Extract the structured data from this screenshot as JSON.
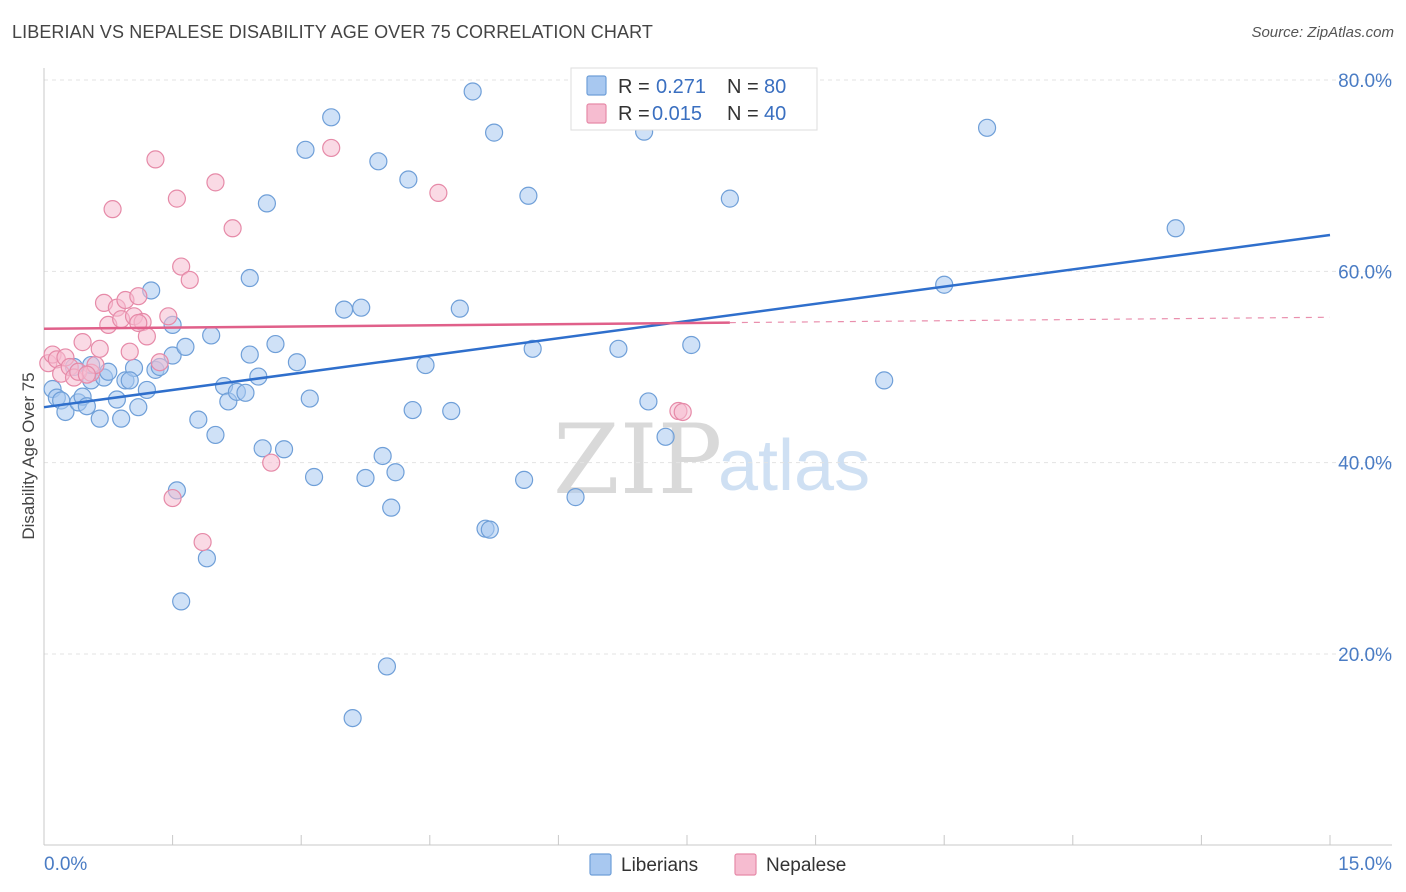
{
  "title": "LIBERIAN VS NEPALESE DISABILITY AGE OVER 75 CORRELATION CHART",
  "source": "Source: ZipAtlas.com",
  "watermark": {
    "zip": "ZIP",
    "atlas": "atlas"
  },
  "colors": {
    "liberians_fill": "#a8c8f0",
    "liberians_stroke": "#6f9fd8",
    "liberians_line": "#2f6fcc",
    "nepalese_fill": "#f6bcd0",
    "nepalese_stroke": "#e68aa8",
    "nepalese_line": "#e0608a",
    "axis_text": "#4a7cc4",
    "grid": "#e3e3e3"
  },
  "legend": {
    "row1": {
      "r_label": "R =",
      "r_value": "0.271",
      "n_label": "N =",
      "n_value": "80"
    },
    "row2": {
      "r_label": "R =",
      "r_value": "0.015",
      "n_label": "N =",
      "n_value": "40"
    }
  },
  "bottom_legend": {
    "liberians": "Liberians",
    "nepalese": "Nepalese"
  },
  "chart_data": {
    "type": "scatter",
    "title": "LIBERIAN VS NEPALESE DISABILITY AGE OVER 75 CORRELATION CHART",
    "xlabel": "",
    "ylabel": "Disability Age Over 75",
    "xlim": [
      0,
      15
    ],
    "ylim": [
      0,
      85
    ],
    "x_tick_labels": {
      "min": "0.0%",
      "max": "15.0%"
    },
    "y_ticks": [
      {
        "value": 20,
        "label": "20.0%"
      },
      {
        "value": 40,
        "label": "40.0%"
      },
      {
        "value": 60,
        "label": "60.0%"
      },
      {
        "value": 80,
        "label": "80.0%"
      }
    ],
    "grid": true,
    "series": [
      {
        "name": "Liberians",
        "R": 0.271,
        "N": 80,
        "trend": {
          "x": [
            0,
            15
          ],
          "y": [
            45.8,
            63.8
          ],
          "solid_until": 15
        },
        "points": [
          [
            0.1,
            47.7
          ],
          [
            0.15,
            46.8
          ],
          [
            0.2,
            46.5
          ],
          [
            0.25,
            45.3
          ],
          [
            0.35,
            50.0
          ],
          [
            0.4,
            46.3
          ],
          [
            0.45,
            46.9
          ],
          [
            0.5,
            45.9
          ],
          [
            0.55,
            48.6
          ],
          [
            0.65,
            44.6
          ],
          [
            0.7,
            48.9
          ],
          [
            0.75,
            49.5
          ],
          [
            0.85,
            46.6
          ],
          [
            0.9,
            44.6
          ],
          [
            0.95,
            48.6
          ],
          [
            1.05,
            49.9
          ],
          [
            1.1,
            45.8
          ],
          [
            1.2,
            47.6
          ],
          [
            1.25,
            58.0
          ],
          [
            1.3,
            49.7
          ],
          [
            1.35,
            50.0
          ],
          [
            1.5,
            51.2
          ],
          [
            1.5,
            54.4
          ],
          [
            1.55,
            37.1
          ],
          [
            1.6,
            25.5
          ],
          [
            1.65,
            52.1
          ],
          [
            1.8,
            44.5
          ],
          [
            1.9,
            30.0
          ],
          [
            1.95,
            53.3
          ],
          [
            2.0,
            42.9
          ],
          [
            2.1,
            48.0
          ],
          [
            2.15,
            46.4
          ],
          [
            2.25,
            47.4
          ],
          [
            2.4,
            59.3
          ],
          [
            2.4,
            51.3
          ],
          [
            2.5,
            49.0
          ],
          [
            2.55,
            41.5
          ],
          [
            2.6,
            67.1
          ],
          [
            2.7,
            52.4
          ],
          [
            2.8,
            41.4
          ],
          [
            2.95,
            50.5
          ],
          [
            3.05,
            72.7
          ],
          [
            3.1,
            46.7
          ],
          [
            3.15,
            38.5
          ],
          [
            3.35,
            76.1
          ],
          [
            3.5,
            56.0
          ],
          [
            3.7,
            56.2
          ],
          [
            3.6,
            13.3
          ],
          [
            3.75,
            38.4
          ],
          [
            3.9,
            71.5
          ],
          [
            3.95,
            40.7
          ],
          [
            4.0,
            18.7
          ],
          [
            4.05,
            35.3
          ],
          [
            4.1,
            39.0
          ],
          [
            4.25,
            69.6
          ],
          [
            4.3,
            45.5
          ],
          [
            4.45,
            50.2
          ],
          [
            4.75,
            45.4
          ],
          [
            4.85,
            56.1
          ],
          [
            5.0,
            78.8
          ],
          [
            5.15,
            33.1
          ],
          [
            5.2,
            33.0
          ],
          [
            5.25,
            74.5
          ],
          [
            5.6,
            38.2
          ],
          [
            5.65,
            67.9
          ],
          [
            5.7,
            51.9
          ],
          [
            6.2,
            36.4
          ],
          [
            6.7,
            51.9
          ],
          [
            7.0,
            74.6
          ],
          [
            7.05,
            46.4
          ],
          [
            7.25,
            42.7
          ],
          [
            7.55,
            52.3
          ],
          [
            8.0,
            67.6
          ],
          [
            9.8,
            48.6
          ],
          [
            10.5,
            58.6
          ],
          [
            11.0,
            75.0
          ],
          [
            13.2,
            64.5
          ],
          [
            0.55,
            50.2
          ],
          [
            2.35,
            47.3
          ],
          [
            1.0,
            48.6
          ]
        ]
      },
      {
        "name": "Nepalese",
        "R": 0.015,
        "N": 40,
        "trend": {
          "x": [
            0,
            15
          ],
          "y": [
            54.0,
            55.2
          ],
          "solid_until": 8.0
        },
        "points": [
          [
            0.05,
            50.4
          ],
          [
            0.1,
            51.3
          ],
          [
            0.15,
            50.8
          ],
          [
            0.2,
            49.3
          ],
          [
            0.25,
            51.0
          ],
          [
            0.3,
            50.0
          ],
          [
            0.35,
            48.9
          ],
          [
            0.4,
            49.5
          ],
          [
            0.45,
            52.6
          ],
          [
            0.55,
            49.4
          ],
          [
            0.6,
            50.2
          ],
          [
            0.65,
            51.9
          ],
          [
            0.7,
            56.7
          ],
          [
            0.75,
            54.4
          ],
          [
            0.8,
            66.5
          ],
          [
            0.85,
            56.2
          ],
          [
            0.9,
            55.0
          ],
          [
            0.95,
            57.0
          ],
          [
            1.0,
            51.6
          ],
          [
            1.05,
            55.3
          ],
          [
            1.1,
            57.4
          ],
          [
            1.15,
            54.7
          ],
          [
            1.2,
            53.2
          ],
          [
            1.3,
            71.7
          ],
          [
            1.35,
            50.5
          ],
          [
            1.45,
            55.3
          ],
          [
            1.5,
            36.3
          ],
          [
            1.55,
            67.6
          ],
          [
            1.6,
            60.5
          ],
          [
            1.7,
            59.1
          ],
          [
            1.85,
            31.7
          ],
          [
            2.0,
            69.3
          ],
          [
            2.2,
            64.5
          ],
          [
            2.65,
            40.0
          ],
          [
            3.35,
            72.9
          ],
          [
            4.6,
            68.2
          ],
          [
            7.4,
            45.4
          ],
          [
            7.45,
            45.3
          ],
          [
            0.5,
            49.2
          ],
          [
            1.1,
            54.6
          ]
        ]
      }
    ]
  }
}
